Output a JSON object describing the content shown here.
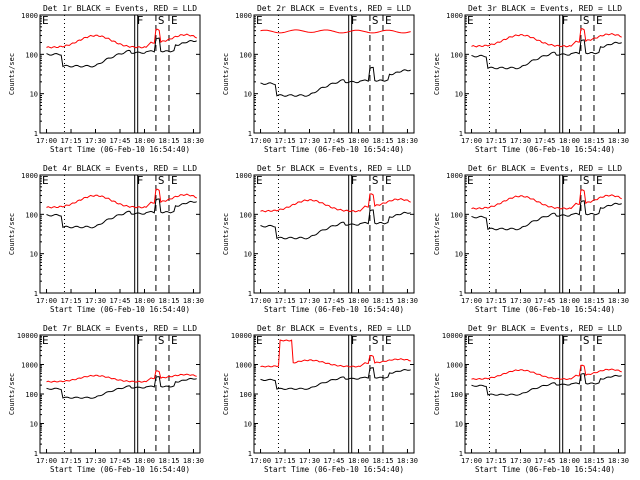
{
  "chart_data": [
    {
      "title": "Det 1r BLACK = Events, RED = LLD",
      "xlabel": "Start Time (06-Feb-10 16:54:40)",
      "ylabel": "Counts/sec",
      "red_base": 150,
      "black_base": 100,
      "red_bump": 300,
      "variant": "normal",
      "high_ymax": false
    },
    {
      "title": "Det 2r BLACK = Events, RED = LLD",
      "xlabel": "Start Time (06-Feb-10 16:54:40)",
      "ylabel": "Counts/sec",
      "red_base": 380,
      "black_base": 18,
      "red_bump": 420,
      "variant": "flat-red",
      "high_ymax": false
    },
    {
      "title": "Det 3r BLACK = Events, RED = LLD",
      "xlabel": "Start Time (06-Feb-10 16:54:40)",
      "ylabel": "Counts/sec",
      "red_base": 160,
      "black_base": 90,
      "red_bump": 310,
      "variant": "normal",
      "high_ymax": false
    },
    {
      "title": "Det 4r BLACK = Events, RED = LLD",
      "xlabel": "Start Time (06-Feb-10 16:54:40)",
      "ylabel": "Counts/sec",
      "red_base": 150,
      "black_base": 95,
      "red_bump": 300,
      "variant": "normal",
      "high_ymax": false
    },
    {
      "title": "Det 5r BLACK = Events, RED = LLD",
      "xlabel": "Start Time (06-Feb-10 16:54:40)",
      "ylabel": "Counts/sec",
      "red_base": 120,
      "black_base": 50,
      "red_bump": 230,
      "variant": "normal",
      "high_ymax": false
    },
    {
      "title": "Det 6r BLACK = Events, RED = LLD",
      "xlabel": "Start Time (06-Feb-10 16:54:40)",
      "ylabel": "Counts/sec",
      "red_base": 140,
      "black_base": 85,
      "red_bump": 290,
      "variant": "normal",
      "high_ymax": false
    },
    {
      "title": "Det 7r BLACK = Events, RED = LLD",
      "xlabel": "Start Time (06-Feb-10 16:54:40)",
      "ylabel": "Counts/sec",
      "red_base": 260,
      "black_base": 150,
      "red_bump": 420,
      "variant": "normal",
      "high_ymax": true
    },
    {
      "title": "Det 8r BLACK = Events, RED = LLD",
      "xlabel": "Start Time (06-Feb-10 16:54:40)",
      "ylabel": "Counts/sec",
      "red_base": 850,
      "black_base": 300,
      "red_bump": 1400,
      "variant": "spike",
      "high_ymax": true
    },
    {
      "title": "Det 9r BLACK = Events, RED = LLD",
      "xlabel": "Start Time (06-Feb-10 16:54:40)",
      "ylabel": "Counts/sec",
      "red_base": 320,
      "black_base": 190,
      "red_bump": 650,
      "variant": "normal",
      "high_ymax": true
    }
  ],
  "shared": {
    "type": "line",
    "yscale": "log",
    "xlim": [
      "16:56",
      "18:34"
    ],
    "x_ticks": [
      "17:00",
      "17:15",
      "17:30",
      "17:45",
      "18:00",
      "18:15",
      "18:30"
    ],
    "y_ticks_default": [
      "1",
      "10",
      "100",
      "1000"
    ],
    "y_ticks_high": [
      "1",
      "10",
      "100",
      "1000",
      "10000"
    ],
    "markers": [
      {
        "label": "E",
        "time": "16:56",
        "style": "solid"
      },
      {
        "label": "",
        "time": "17:11",
        "style": "dotted"
      },
      {
        "label": "F",
        "time": "17:54",
        "style": "double"
      },
      {
        "label": "S",
        "time": "18:07",
        "style": "dashed"
      },
      {
        "label": "E",
        "time": "18:15",
        "style": "dashed"
      }
    ],
    "series": [
      {
        "name": "Events",
        "color": "#000000"
      },
      {
        "name": "LLD",
        "color": "#ff0000"
      }
    ]
  }
}
